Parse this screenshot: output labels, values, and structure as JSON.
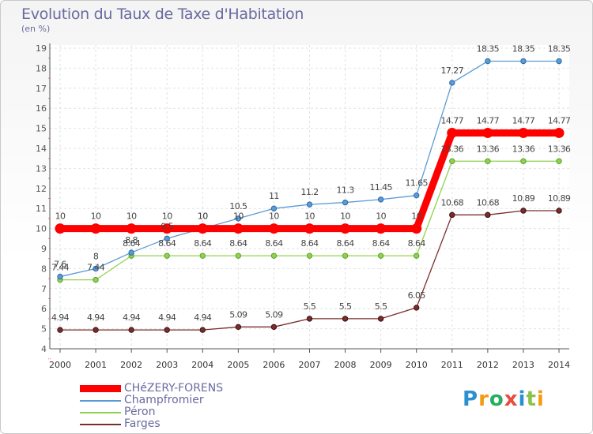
{
  "title": "Evolution du Taux de Taxe d'Habitation",
  "unit": "(en %)",
  "brand": {
    "text": "Proxiti",
    "colors": [
      "#2c8fd0",
      "#f39c12",
      "#27ae60",
      "#e74c3c",
      "#2c8fd0",
      "#8bc34a",
      "#f39c12"
    ]
  },
  "chart_data": {
    "type": "line",
    "title": "Evolution du Taux de Taxe d'Habitation",
    "ylabel": "(en %)",
    "xlabel": "",
    "x": [
      "2000",
      "2001",
      "2002",
      "2003",
      "2004",
      "2005",
      "2006",
      "2007",
      "2008",
      "2009",
      "2010",
      "2011",
      "2012",
      "2013",
      "2014"
    ],
    "yticks": [
      "4",
      "5",
      "6",
      "7",
      "8",
      "9",
      "10",
      "11",
      "12",
      "13",
      "14",
      "15",
      "16",
      "17",
      "18",
      "19"
    ],
    "ylim": [
      4,
      19
    ],
    "grid": true,
    "legend_position": "bottom-left",
    "series": [
      {
        "name": "CHéZERY-FORENS",
        "color": "#ff0000",
        "values": [
          10,
          10,
          10,
          10,
          10,
          10,
          10,
          10,
          10,
          10,
          10,
          14.77,
          14.77,
          14.77,
          14.77
        ],
        "labels": [
          "10",
          "10",
          "10",
          "10",
          "10",
          "10",
          "10",
          "10",
          "10",
          "10",
          "10",
          "14.77",
          "14.77",
          "14.77",
          "14.77"
        ]
      },
      {
        "name": "Champfromier",
        "color": "#5b9bd5",
        "values": [
          7.6,
          8,
          8.8,
          9.5,
          10,
          10.5,
          11,
          11.2,
          11.3,
          11.45,
          11.65,
          17.27,
          18.35,
          18.35,
          18.35
        ],
        "labels": [
          "7.6",
          "8",
          "8.8",
          "9.5",
          "10",
          "10.5",
          "11",
          "11.2",
          "11.3",
          "11.45",
          "11.65",
          "17.27",
          "18.35",
          "18.35",
          "18.35"
        ]
      },
      {
        "name": "Péron",
        "color": "#92d050",
        "values": [
          7.44,
          7.44,
          8.64,
          8.64,
          8.64,
          8.64,
          8.64,
          8.64,
          8.64,
          8.64,
          8.64,
          13.36,
          13.36,
          13.36,
          13.36
        ],
        "labels": [
          "7.44",
          "7.44",
          "8.64",
          "8.64",
          "8.64",
          "8.64",
          "8.64",
          "8.64",
          "8.64",
          "8.64",
          "8.64",
          "13.36",
          "13.36",
          "13.36",
          "13.36"
        ]
      },
      {
        "name": "Farges",
        "color": "#7b2c2c",
        "values": [
          4.94,
          4.94,
          4.94,
          4.94,
          4.94,
          5.09,
          5.09,
          5.5,
          5.5,
          5.5,
          6.05,
          10.68,
          10.68,
          10.89,
          10.89
        ],
        "labels": [
          "4.94",
          "4.94",
          "4.94",
          "4.94",
          "4.94",
          "5.09",
          "5.09",
          "5.5",
          "5.5",
          "5.5",
          "6.05",
          "10.68",
          "10.68",
          "10.89",
          "10.89"
        ]
      }
    ]
  }
}
